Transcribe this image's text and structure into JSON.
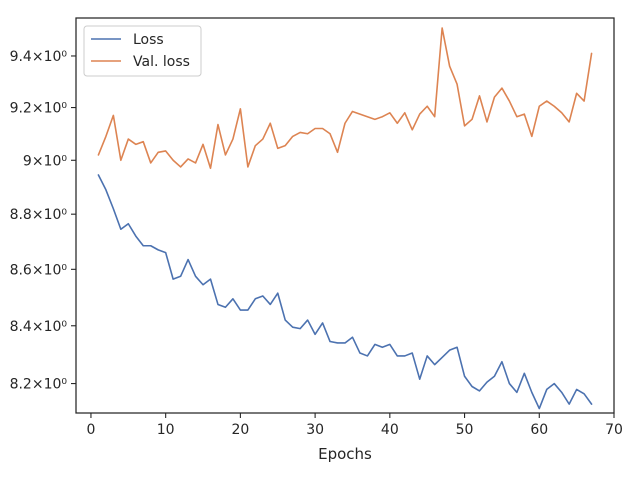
{
  "chart_data": {
    "type": "line",
    "title": "",
    "xlabel": "Epochs",
    "ylabel": "",
    "yscale": "log",
    "xlim": [
      -2,
      70
    ],
    "ylim": [
      8.1,
      9.55
    ],
    "grid": false,
    "legend_position": "top-left",
    "x_ticks": [
      0,
      10,
      20,
      30,
      40,
      50,
      60,
      70
    ],
    "x_tick_labels": [
      "0",
      "10",
      "20",
      "30",
      "40",
      "50",
      "60",
      "70"
    ],
    "y_ticks": [
      8.2,
      8.4,
      8.6,
      8.8,
      9.0,
      9.2,
      9.4
    ],
    "y_tick_labels": [
      "8.2×10⁰",
      "8.4×10⁰",
      "8.6×10⁰",
      "8.8×10⁰",
      "9×10⁰",
      "9.2×10⁰",
      "9.4×10⁰"
    ],
    "x": [
      1,
      2,
      3,
      4,
      5,
      6,
      7,
      8,
      9,
      10,
      11,
      12,
      13,
      14,
      15,
      16,
      17,
      18,
      19,
      20,
      21,
      22,
      23,
      24,
      25,
      26,
      27,
      28,
      29,
      30,
      31,
      32,
      33,
      34,
      35,
      36,
      37,
      38,
      39,
      40,
      41,
      42,
      43,
      44,
      45,
      46,
      47,
      48,
      49,
      50,
      51,
      52,
      53,
      54,
      55,
      56,
      57,
      58,
      59,
      60,
      61,
      62,
      63,
      64,
      65,
      66,
      67
    ],
    "series": [
      {
        "name": "Loss",
        "color": "#4c72b0",
        "values": [
          8.945,
          8.89,
          8.82,
          8.745,
          8.765,
          8.72,
          8.685,
          8.685,
          8.67,
          8.66,
          8.565,
          8.575,
          8.635,
          8.575,
          8.545,
          8.565,
          8.475,
          8.465,
          8.495,
          8.455,
          8.455,
          8.495,
          8.505,
          8.475,
          8.515,
          8.42,
          8.395,
          8.39,
          8.42,
          8.37,
          8.41,
          8.345,
          8.34,
          8.34,
          8.36,
          8.305,
          8.295,
          8.335,
          8.325,
          8.335,
          8.295,
          8.295,
          8.305,
          8.215,
          8.295,
          8.265,
          8.29,
          8.315,
          8.325,
          8.225,
          8.19,
          8.175,
          8.205,
          8.225,
          8.275,
          8.2,
          8.17,
          8.235,
          8.17,
          8.115,
          8.18,
          8.2,
          8.17,
          8.13,
          8.18,
          8.165,
          8.13
        ]
      },
      {
        "name": "Val. loss",
        "color": "#dd8452",
        "values": [
          9.02,
          9.09,
          9.17,
          9.0,
          9.08,
          9.06,
          9.07,
          8.99,
          9.03,
          9.035,
          9.0,
          8.975,
          9.005,
          8.99,
          9.06,
          8.97,
          9.135,
          9.02,
          9.08,
          9.195,
          8.975,
          9.055,
          9.08,
          9.14,
          9.045,
          9.055,
          9.09,
          9.105,
          9.1,
          9.12,
          9.12,
          9.1,
          9.03,
          9.14,
          9.185,
          9.175,
          9.165,
          9.155,
          9.165,
          9.18,
          9.14,
          9.18,
          9.115,
          9.175,
          9.205,
          9.165,
          9.51,
          9.36,
          9.29,
          9.13,
          9.155,
          9.245,
          9.145,
          9.24,
          9.275,
          9.225,
          9.165,
          9.175,
          9.09,
          9.205,
          9.225,
          9.205,
          9.18,
          9.145,
          9.255,
          9.225,
          9.41
        ]
      }
    ]
  }
}
